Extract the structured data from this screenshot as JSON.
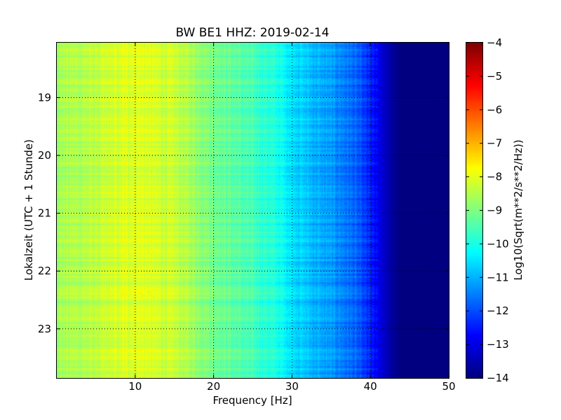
{
  "chart_data": {
    "type": "heatmap",
    "title": "BW BE1 HHZ: 2019-02-14",
    "xlabel": "Frequency [Hz]",
    "ylabel": "Lokalzeit (UTC + 1 Stunde)",
    "colorbar_label": "Log10(Sqrt(m**2/s**2/Hz))",
    "colormap": "jet",
    "xlim": [
      0,
      50
    ],
    "ylim": [
      18.05,
      23.85
    ],
    "y_inverted": true,
    "grid": true,
    "xticks": [
      10,
      20,
      30,
      40,
      50
    ],
    "xtick_labels": [
      "10",
      "20",
      "30",
      "40",
      "50"
    ],
    "yticks": [
      19,
      20,
      21,
      22,
      23
    ],
    "ytick_labels": [
      "19",
      "20",
      "21",
      "22",
      "23"
    ],
    "clim": [
      -14,
      -4
    ],
    "cbar_ticks": [
      -4,
      -5,
      -6,
      -7,
      -8,
      -9,
      -10,
      -11,
      -12,
      -13,
      -14
    ],
    "cbar_tick_labels": [
      "−4",
      "−5",
      "−6",
      "−7",
      "−8",
      "−9",
      "−10",
      "−11",
      "−12",
      "−13",
      "−14"
    ],
    "spectrum_profile": {
      "frequency": [
        0,
        5,
        10,
        15,
        20,
        25,
        28,
        30,
        33,
        36,
        38,
        40,
        42,
        43,
        44,
        50
      ],
      "log_amplitude": [
        -8.6,
        -8.4,
        -8.0,
        -8.3,
        -9.1,
        -9.6,
        -10.0,
        -10.5,
        -11.0,
        -11.4,
        -11.8,
        -12.5,
        -13.4,
        -13.8,
        -14.0,
        -14.0
      ]
    }
  }
}
